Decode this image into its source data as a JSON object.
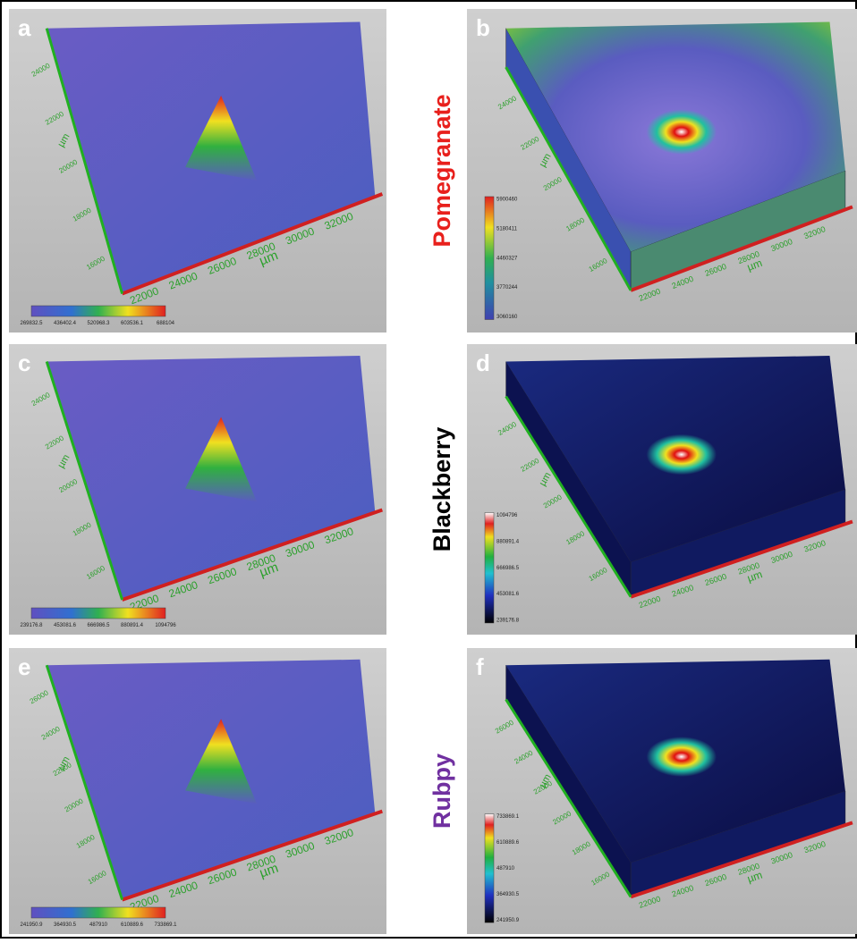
{
  "rows": [
    {
      "label": "Pomegranate",
      "color": "#e8201c"
    },
    {
      "label": "Blackberry",
      "color": "#000000"
    },
    {
      "label": "Rubpy",
      "color": "#7030a0"
    }
  ],
  "panels": [
    {
      "letter": "a",
      "kind": "surface",
      "xticks": [
        "22000",
        "24000",
        "26000",
        "28000",
        "30000",
        "32000"
      ],
      "yticks": [
        "16000",
        "18000",
        "20000",
        "22000",
        "24000"
      ],
      "x_unit": "µm",
      "y_unit": "µm",
      "colorbar": [
        "269832.5",
        "436402.4",
        "520968.3",
        "603536.1",
        "688104"
      ]
    },
    {
      "letter": "b",
      "kind": "block-green",
      "xticks": [
        "22000",
        "24000",
        "26000",
        "28000",
        "30000",
        "32000"
      ],
      "yticks": [
        "16000",
        "18000",
        "20000",
        "22000",
        "24000"
      ],
      "x_unit": "µm",
      "y_unit": "µm",
      "colorbar": [
        "5900460",
        "5180411",
        "4460327",
        "3770244",
        "3060160"
      ]
    },
    {
      "letter": "c",
      "kind": "surface",
      "xticks": [
        "22000",
        "24000",
        "26000",
        "28000",
        "30000",
        "32000"
      ],
      "yticks": [
        "16000",
        "18000",
        "20000",
        "22000",
        "24000"
      ],
      "x_unit": "µm",
      "y_unit": "µm",
      "colorbar": [
        "239176.8",
        "453081.6",
        "666986.5",
        "880891.4",
        "1094796"
      ]
    },
    {
      "letter": "d",
      "kind": "block-dark",
      "xticks": [
        "22000",
        "24000",
        "26000",
        "28000",
        "30000",
        "32000"
      ],
      "yticks": [
        "16000",
        "18000",
        "20000",
        "22000",
        "24000"
      ],
      "x_unit": "µm",
      "y_unit": "µm",
      "colorbar": [
        "1094796",
        "880891.4",
        "666986.5",
        "453081.6",
        "239176.8"
      ]
    },
    {
      "letter": "e",
      "kind": "surface",
      "xticks": [
        "22000",
        "24000",
        "26000",
        "28000",
        "30000",
        "32000"
      ],
      "yticks": [
        "16000",
        "18000",
        "20000",
        "22000",
        "24000",
        "26000"
      ],
      "x_unit": "µm",
      "y_unit": "µm",
      "colorbar": [
        "241950.9",
        "364930.5",
        "487910",
        "610889.6",
        "733869.1"
      ]
    },
    {
      "letter": "f",
      "kind": "block-dark",
      "xticks": [
        "22000",
        "24000",
        "26000",
        "28000",
        "30000",
        "32000"
      ],
      "yticks": [
        "16000",
        "18000",
        "20000",
        "22000",
        "24000",
        "26000"
      ],
      "x_unit": "µm",
      "y_unit": "µm",
      "colorbar": [
        "733869.1",
        "610889.6",
        "487910",
        "364930.5",
        "241950.9"
      ]
    }
  ]
}
